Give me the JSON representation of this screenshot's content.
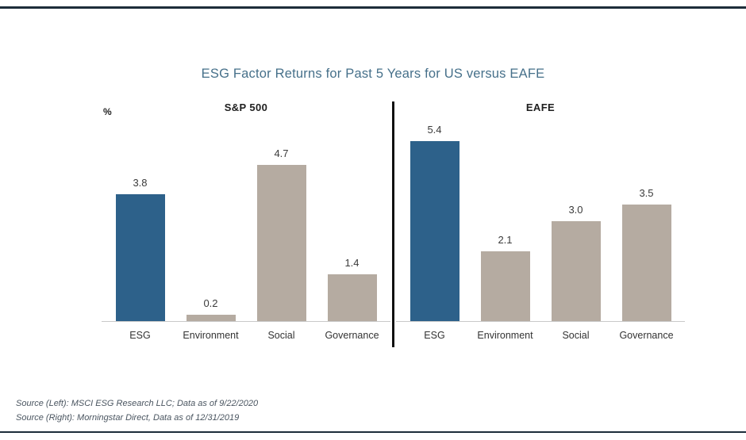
{
  "page": {
    "title": "ESG Factor Returns for Past 5 Years for US versus EAFE",
    "y_unit_label": "%",
    "sources": [
      "Source (Left): MSCI ESG Research LLC; Data as of 9/22/2020",
      "Source (Right): Morningstar Direct, Data as of 12/31/2019"
    ]
  },
  "colors": {
    "esg_bar": "#2d618a",
    "other_bar": "#b5aba1",
    "rule": "#1d2d3a",
    "title_text": "#46708a",
    "baseline": "#c9c9c9"
  },
  "chart_data": {
    "type": "bar",
    "title": "ESG Factor Returns for Past 5 Years for US versus EAFE",
    "ylabel": "%",
    "ylim": [
      0,
      5.8
    ],
    "grid": false,
    "legend": "none",
    "highlight_category": "ESG",
    "groups": [
      {
        "label": "S&P 500",
        "categories": [
          "ESG",
          "Environment",
          "Social",
          "Governance"
        ],
        "values": [
          3.8,
          0.2,
          4.7,
          1.4
        ]
      },
      {
        "label": "EAFE",
        "categories": [
          "ESG",
          "Environment",
          "Social",
          "Governance"
        ],
        "values": [
          5.4,
          2.1,
          3.0,
          3.5
        ]
      }
    ]
  }
}
